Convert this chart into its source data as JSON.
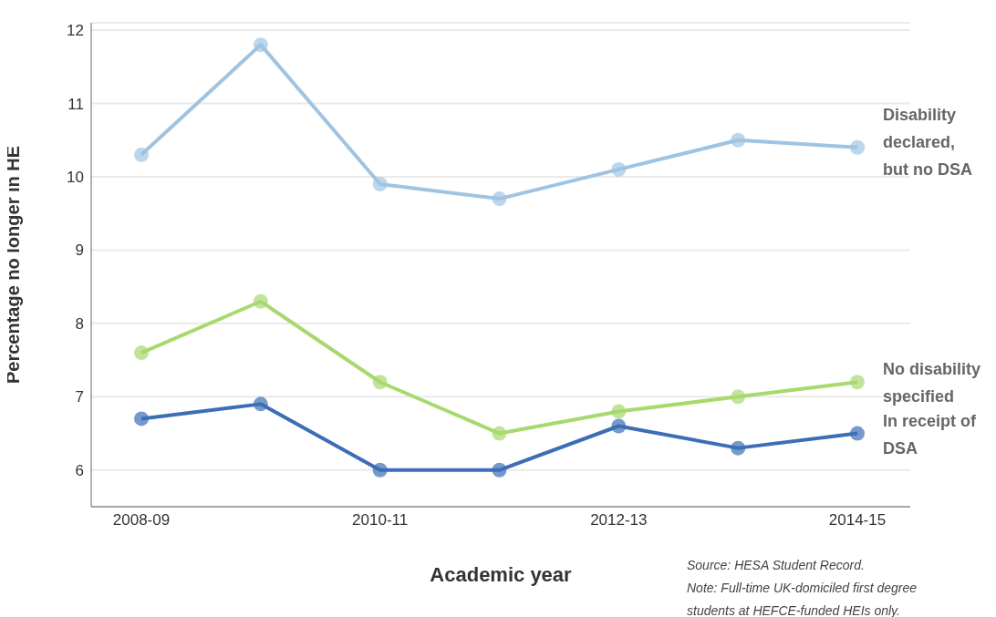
{
  "chart_data": {
    "type": "line",
    "xlabel": "Academic year",
    "ylabel": "Percentage no longer in HE",
    "categories": [
      "2008-09",
      null,
      "2010-11",
      null,
      "2012-13",
      null,
      "2014-15"
    ],
    "series": [
      {
        "name": "Disability declared, but no DSA",
        "color": "#9fc4e2",
        "values": [
          10.3,
          11.8,
          9.9,
          9.7,
          10.1,
          10.5,
          10.4
        ]
      },
      {
        "name": "No disability specified",
        "color": "#a8d96f",
        "values": [
          7.6,
          8.3,
          7.2,
          6.5,
          6.8,
          7.0,
          7.2
        ]
      },
      {
        "name": "In receipt of DSA",
        "color": "#3c6db6",
        "values": [
          6.7,
          6.9,
          6.0,
          6.0,
          6.6,
          6.3,
          6.5
        ]
      }
    ],
    "ylim": [
      5.5,
      12.1
    ],
    "yticks": [
      6,
      7,
      8,
      9,
      10,
      11,
      12
    ],
    "grid": "y",
    "legend": false,
    "marker": "circle",
    "line_style": "solid",
    "annotations": [
      "Source: HESA Student Record.",
      "Note: Full-time UK-domiciled first degree students at HEFCE-funded HEIs only."
    ]
  }
}
